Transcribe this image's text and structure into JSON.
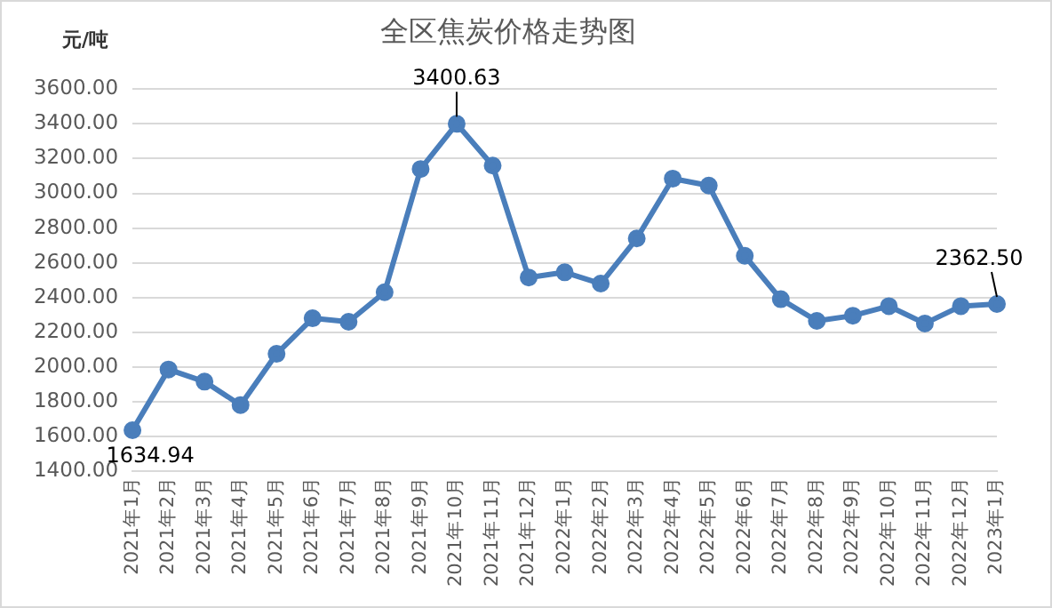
{
  "chart_data": {
    "type": "line",
    "title": "全区焦炭价格走势图",
    "ylabel": "元/吨",
    "categories": [
      "2021年1月",
      "2021年2月",
      "2021年3月",
      "2021年4月",
      "2021年5月",
      "2021年6月",
      "2021年7月",
      "2021年8月",
      "2021年9月",
      "2021年10月",
      "2021年11月",
      "2021年12月",
      "2022年1月",
      "2022年2月",
      "2022年3月",
      "2022年4月",
      "2022年5月",
      "2022年6月",
      "2022年7月",
      "2022年8月",
      "2022年9月",
      "2022年10月",
      "2022年11月",
      "2022年12月",
      "2023年1月"
    ],
    "series": [
      {
        "color": "#4a7ebb",
        "values": [
          1634.94,
          1985,
          1915,
          1780,
          2075,
          2280,
          2260,
          2430,
          3140,
          3400.63,
          3160,
          2515,
          2545,
          2480,
          2740,
          3085,
          3045,
          2640,
          2390,
          2265,
          2295,
          2350,
          2250,
          2350,
          2362.5
        ],
        "value_labels": [
          "1634.94",
          null,
          null,
          null,
          null,
          null,
          null,
          null,
          null,
          "3400.63",
          null,
          null,
          null,
          null,
          null,
          null,
          null,
          null,
          null,
          null,
          null,
          null,
          null,
          null,
          "2362.50"
        ]
      }
    ],
    "ylim": [
      1400,
      3600
    ],
    "yticks": [
      {
        "value": 1400,
        "label": "1400.00"
      },
      {
        "value": 1600,
        "label": "1600.00"
      },
      {
        "value": 1800,
        "label": "1800.00"
      },
      {
        "value": 2000,
        "label": "2000.00"
      },
      {
        "value": 2200,
        "label": "2200.00"
      },
      {
        "value": 2400,
        "label": "2400.00"
      },
      {
        "value": 2600,
        "label": "2600.00"
      },
      {
        "value": 2800,
        "label": "2800.00"
      },
      {
        "value": 3000,
        "label": "3000.00"
      },
      {
        "value": 3200,
        "label": "3200.00"
      },
      {
        "value": 3400,
        "label": "3400.00"
      },
      {
        "value": 3600,
        "label": "3600.00"
      }
    ],
    "grid": "y",
    "legend": false,
    "marker": "circle",
    "line_style": "solid"
  }
}
